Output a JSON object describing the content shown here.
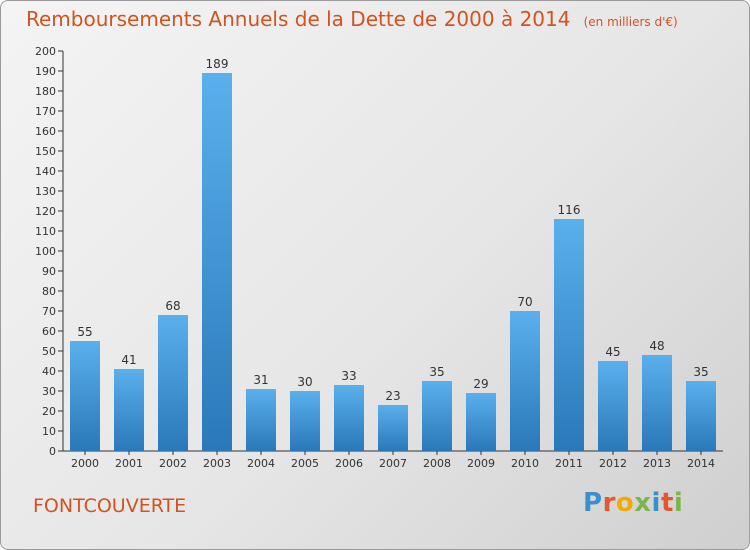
{
  "header": {
    "title": "Remboursements Annuels de la Dette de 2000 à 2014",
    "unit": "(en milliers d'€)"
  },
  "footer": {
    "commune": "FONTCOUVERTE",
    "brand_letters": [
      "P",
      "r",
      "o",
      "x",
      "i",
      "t",
      "i"
    ],
    "brand_colors": [
      "#3a8fd0",
      "#e4572e",
      "#f2a900",
      "#7bb64b",
      "#3a8fd0",
      "#e4572e",
      "#7bb64b"
    ]
  },
  "colors": {
    "bar_top": "#5ab0ec",
    "bar_bottom": "#2a78b8",
    "title": "#d2531f",
    "axis": "#333333"
  },
  "chart_data": {
    "type": "bar",
    "categories": [
      "2000",
      "2001",
      "2002",
      "2003",
      "2004",
      "2005",
      "2006",
      "2007",
      "2008",
      "2009",
      "2010",
      "2011",
      "2012",
      "2013",
      "2014"
    ],
    "values": [
      55,
      41,
      68,
      189,
      31,
      30,
      33,
      23,
      35,
      29,
      70,
      116,
      45,
      48,
      35
    ],
    "ylim": [
      0,
      200
    ],
    "ytick_step": 10,
    "grid": false,
    "data_labels": true
  }
}
